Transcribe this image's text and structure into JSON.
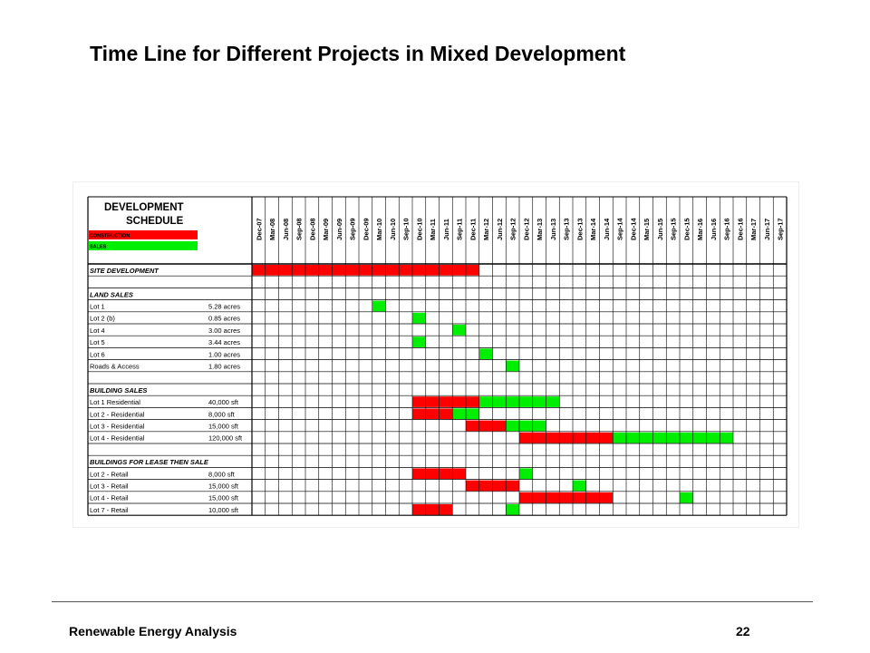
{
  "slide": {
    "title": "Time Line for Different Projects in Mixed Development",
    "footer_left": "Renewable Energy Analysis",
    "page_number": "22"
  },
  "chart_data": {
    "type": "table",
    "title_line1": "DEVELOPMENT",
    "title_line2": "SCHEDULE",
    "legend": [
      {
        "label": "CONSTRUCTION",
        "color": "#ff0000"
      },
      {
        "label": "SALES",
        "color": "#00ee00"
      }
    ],
    "colors": {
      "construction": "#ff0000",
      "sales": "#00ee00"
    },
    "periods": [
      "Dec-07",
      "Mar-08",
      "Jun-08",
      "Sep-08",
      "Dec-08",
      "Mar-09",
      "Jun-09",
      "Sep-09",
      "Dec-09",
      "Mar-10",
      "Jun-10",
      "Sep-10",
      "Dec-10",
      "Mar-11",
      "Jun-11",
      "Sep-11",
      "Dec-11",
      "Mar-12",
      "Jun-12",
      "Sep-12",
      "Dec-12",
      "Mar-13",
      "Jun-13",
      "Sep-13",
      "Dec-13",
      "Mar-14",
      "Jun-14",
      "Sep-14",
      "Dec-14",
      "Mar-15",
      "Jun-15",
      "Sep-15",
      "Dec-15",
      "Mar-16",
      "Jun-16",
      "Sep-16",
      "Dec-16",
      "Mar-17",
      "Jun-17",
      "Sep-17"
    ],
    "rows": [
      {
        "kind": "section",
        "label": "SITE DEVELOPMENT",
        "segments": [
          {
            "type": "construction",
            "from": "Dec-07",
            "to": "Dec-11"
          }
        ]
      },
      {
        "kind": "blank"
      },
      {
        "kind": "section",
        "label": "LAND SALES",
        "segments": []
      },
      {
        "kind": "item",
        "label": "Lot 1",
        "size": "5.28 acres",
        "segments": [
          {
            "type": "sales",
            "from": "Mar-10",
            "to": "Mar-10"
          }
        ]
      },
      {
        "kind": "item",
        "label": "Lot 2 (b)",
        "size": "0.85 acres",
        "segments": [
          {
            "type": "sales",
            "from": "Dec-10",
            "to": "Dec-10"
          }
        ]
      },
      {
        "kind": "item",
        "label": "Lot 4",
        "size": "3.00 acres",
        "segments": [
          {
            "type": "sales",
            "from": "Sep-11",
            "to": "Sep-11"
          }
        ]
      },
      {
        "kind": "item",
        "label": "Lot 5",
        "size": "3.44 acres",
        "segments": [
          {
            "type": "sales",
            "from": "Dec-10",
            "to": "Dec-10"
          }
        ]
      },
      {
        "kind": "item",
        "label": "Lot 6",
        "size": "1.00 acres",
        "segments": [
          {
            "type": "sales",
            "from": "Mar-12",
            "to": "Mar-12"
          }
        ]
      },
      {
        "kind": "item",
        "label": "Roads & Access",
        "size": "1.80 acres",
        "segments": [
          {
            "type": "sales",
            "from": "Sep-12",
            "to": "Sep-12"
          }
        ]
      },
      {
        "kind": "blank"
      },
      {
        "kind": "section",
        "label": "BUILDING SALES",
        "segments": []
      },
      {
        "kind": "item",
        "label": "Lot 1 Residential",
        "size": "40,000 sft",
        "segments": [
          {
            "type": "construction",
            "from": "Dec-10",
            "to": "Dec-11"
          },
          {
            "type": "sales",
            "from": "Mar-12",
            "to": "Jun-13"
          }
        ]
      },
      {
        "kind": "item",
        "label": "Lot 2 - Residential",
        "size": "8,000 sft",
        "segments": [
          {
            "type": "construction",
            "from": "Dec-10",
            "to": "Jun-11"
          },
          {
            "type": "sales",
            "from": "Sep-11",
            "to": "Dec-11"
          }
        ]
      },
      {
        "kind": "item",
        "label": "Lot 3 - Residential",
        "size": "15,000 sft",
        "segments": [
          {
            "type": "construction",
            "from": "Dec-11",
            "to": "Jun-12"
          },
          {
            "type": "sales",
            "from": "Sep-12",
            "to": "Mar-13"
          }
        ]
      },
      {
        "kind": "item",
        "label": "Lot 4 - Residential",
        "size": "120,000 sft",
        "segments": [
          {
            "type": "construction",
            "from": "Dec-12",
            "to": "Jun-14"
          },
          {
            "type": "sales",
            "from": "Sep-14",
            "to": "Sep-16"
          }
        ]
      },
      {
        "kind": "blank"
      },
      {
        "kind": "section",
        "label": "BUILDINGS FOR LEASE THEN SALE",
        "segments": []
      },
      {
        "kind": "item",
        "label": "Lot 2 - Retail",
        "size": "8,000 sft",
        "segments": [
          {
            "type": "construction",
            "from": "Dec-10",
            "to": "Sep-11"
          },
          {
            "type": "sales",
            "from": "Dec-12",
            "to": "Dec-12"
          }
        ]
      },
      {
        "kind": "item",
        "label": "Lot 3 - Retail",
        "size": "15,000 sft",
        "segments": [
          {
            "type": "construction",
            "from": "Dec-11",
            "to": "Sep-12"
          },
          {
            "type": "sales",
            "from": "Dec-13",
            "to": "Dec-13"
          }
        ]
      },
      {
        "kind": "item",
        "label": "Lot 4 - Retail",
        "size": "15,000 sft",
        "segments": [
          {
            "type": "construction",
            "from": "Dec-12",
            "to": "Jun-14"
          },
          {
            "type": "sales",
            "from": "Dec-15",
            "to": "Dec-15"
          }
        ]
      },
      {
        "kind": "item",
        "label": "Lot 7 - Retail",
        "size": "10,000 sft",
        "segments": [
          {
            "type": "construction",
            "from": "Dec-10",
            "to": "Jun-11"
          },
          {
            "type": "sales",
            "from": "Sep-12",
            "to": "Sep-12"
          }
        ]
      }
    ]
  }
}
